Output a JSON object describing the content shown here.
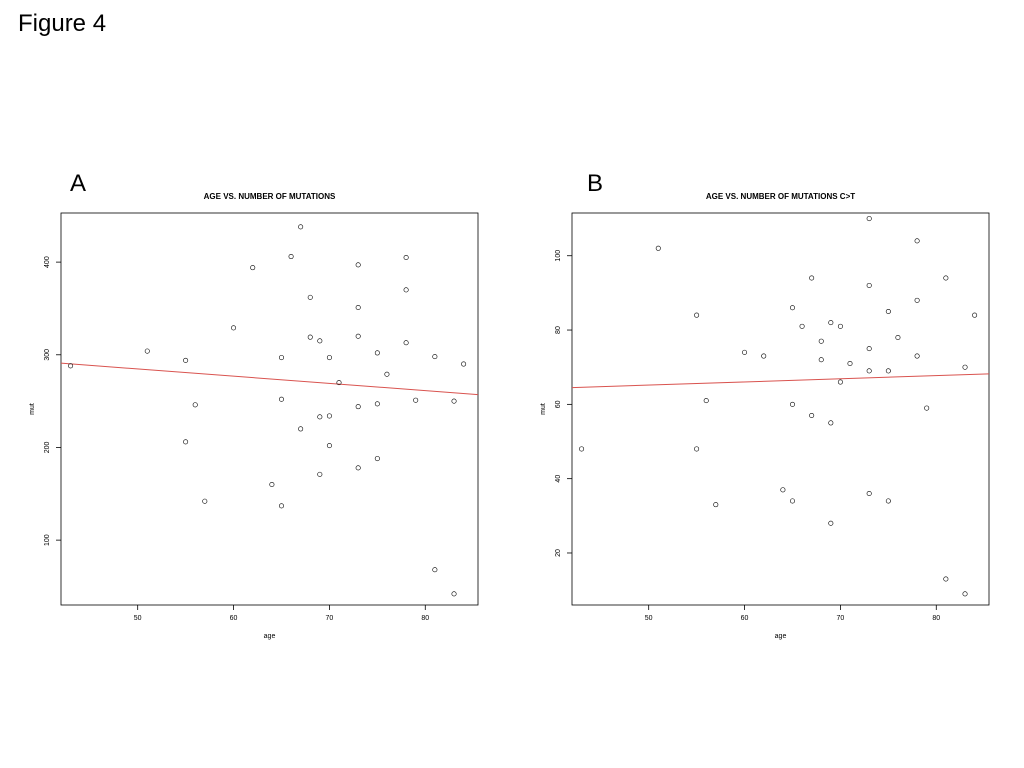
{
  "figure_title": "Figure 4",
  "colors": {
    "points": "#000000",
    "fit_line": "#d9534f",
    "frame": "#000000"
  },
  "chart_data": [
    {
      "panel": "A",
      "type": "scatter",
      "title": "AGE VS. NUMBER OF MUTATIONS",
      "xlabel": "age",
      "ylabel": "mut",
      "xlim": [
        42,
        85.5
      ],
      "ylim": [
        30,
        453
      ],
      "xticks": [
        50,
        60,
        70,
        80
      ],
      "yticks": [
        100,
        200,
        300,
        400
      ],
      "grid": false,
      "fit_line": {
        "x": [
          42,
          85.5
        ],
        "y": [
          291,
          257
        ]
      },
      "points": [
        {
          "x": 43,
          "y": 288
        },
        {
          "x": 51,
          "y": 304
        },
        {
          "x": 55,
          "y": 294
        },
        {
          "x": 55,
          "y": 206
        },
        {
          "x": 56,
          "y": 246
        },
        {
          "x": 57,
          "y": 142
        },
        {
          "x": 60,
          "y": 329
        },
        {
          "x": 62,
          "y": 394
        },
        {
          "x": 64,
          "y": 160
        },
        {
          "x": 65,
          "y": 297
        },
        {
          "x": 65,
          "y": 252
        },
        {
          "x": 65,
          "y": 137
        },
        {
          "x": 66,
          "y": 406
        },
        {
          "x": 67,
          "y": 438
        },
        {
          "x": 67,
          "y": 220
        },
        {
          "x": 68,
          "y": 362
        },
        {
          "x": 68,
          "y": 319
        },
        {
          "x": 69,
          "y": 315
        },
        {
          "x": 69,
          "y": 233
        },
        {
          "x": 69,
          "y": 171
        },
        {
          "x": 70,
          "y": 297
        },
        {
          "x": 70,
          "y": 234
        },
        {
          "x": 70,
          "y": 202
        },
        {
          "x": 71,
          "y": 270
        },
        {
          "x": 73,
          "y": 397
        },
        {
          "x": 73,
          "y": 351
        },
        {
          "x": 73,
          "y": 320
        },
        {
          "x": 73,
          "y": 244
        },
        {
          "x": 73,
          "y": 178
        },
        {
          "x": 75,
          "y": 302
        },
        {
          "x": 75,
          "y": 247
        },
        {
          "x": 75,
          "y": 188
        },
        {
          "x": 76,
          "y": 279
        },
        {
          "x": 78,
          "y": 405
        },
        {
          "x": 78,
          "y": 370
        },
        {
          "x": 78,
          "y": 313
        },
        {
          "x": 79,
          "y": 251
        },
        {
          "x": 81,
          "y": 298
        },
        {
          "x": 81,
          "y": 68
        },
        {
          "x": 83,
          "y": 250
        },
        {
          "x": 83,
          "y": 42
        },
        {
          "x": 84,
          "y": 290
        }
      ]
    },
    {
      "panel": "B",
      "type": "scatter",
      "title": "AGE VS. NUMBER OF MUTATIONS C>T",
      "xlabel": "age",
      "ylabel": "mut",
      "xlim": [
        42,
        85.5
      ],
      "ylim": [
        6,
        111.5
      ],
      "xticks": [
        50,
        60,
        70,
        80
      ],
      "yticks": [
        20,
        40,
        60,
        80,
        100
      ],
      "grid": false,
      "fit_line": {
        "x": [
          42,
          85.5
        ],
        "y": [
          64.5,
          68.2
        ]
      },
      "points": [
        {
          "x": 43,
          "y": 48
        },
        {
          "x": 51,
          "y": 102
        },
        {
          "x": 55,
          "y": 84
        },
        {
          "x": 55,
          "y": 48
        },
        {
          "x": 56,
          "y": 61
        },
        {
          "x": 57,
          "y": 33
        },
        {
          "x": 60,
          "y": 74
        },
        {
          "x": 62,
          "y": 73
        },
        {
          "x": 64,
          "y": 37
        },
        {
          "x": 65,
          "y": 86
        },
        {
          "x": 65,
          "y": 60
        },
        {
          "x": 65,
          "y": 34
        },
        {
          "x": 66,
          "y": 81
        },
        {
          "x": 67,
          "y": 94
        },
        {
          "x": 67,
          "y": 57
        },
        {
          "x": 68,
          "y": 77
        },
        {
          "x": 68,
          "y": 72
        },
        {
          "x": 69,
          "y": 82
        },
        {
          "x": 69,
          "y": 55
        },
        {
          "x": 69,
          "y": 28
        },
        {
          "x": 70,
          "y": 81
        },
        {
          "x": 70,
          "y": 66
        },
        {
          "x": 71,
          "y": 71
        },
        {
          "x": 73,
          "y": 110
        },
        {
          "x": 73,
          "y": 92
        },
        {
          "x": 73,
          "y": 75
        },
        {
          "x": 73,
          "y": 69
        },
        {
          "x": 73,
          "y": 36
        },
        {
          "x": 75,
          "y": 85
        },
        {
          "x": 75,
          "y": 69
        },
        {
          "x": 75,
          "y": 34
        },
        {
          "x": 76,
          "y": 78
        },
        {
          "x": 78,
          "y": 104
        },
        {
          "x": 78,
          "y": 88
        },
        {
          "x": 78,
          "y": 73
        },
        {
          "x": 79,
          "y": 59
        },
        {
          "x": 81,
          "y": 94
        },
        {
          "x": 81,
          "y": 13
        },
        {
          "x": 83,
          "y": 70
        },
        {
          "x": 83,
          "y": 9
        },
        {
          "x": 84,
          "y": 84
        }
      ]
    }
  ]
}
